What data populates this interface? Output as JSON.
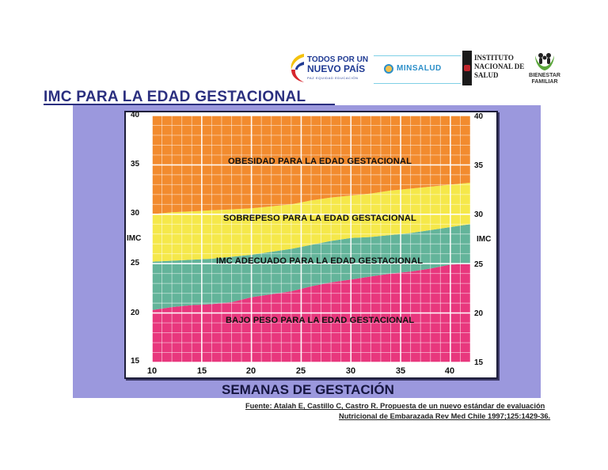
{
  "header": {
    "logos": {
      "todos_line1": "TODOS POR UN",
      "todos_line2": "NUEVO PAÍS",
      "todos_line3": "PAZ  EQUIDAD  EDUCACIÓN",
      "minsalud": "MINSALUD",
      "ins_line1": "INSTITUTO",
      "ins_line2": "NACIONAL DE",
      "ins_line3": "SALUD",
      "bienestar_line1": "BIENESTAR",
      "bienestar_line2": "FAMILIAR"
    },
    "title": "IMC PARA LA EDAD GESTACIONAL"
  },
  "colors": {
    "panel": "#9b98dd",
    "obesidad": "#f28b2e",
    "sobrepeso": "#f5e84a",
    "adecuado": "#63b49a",
    "bajo_peso": "#e8377d",
    "title": "#2b2f7f"
  },
  "chart_data": {
    "type": "area",
    "title": "IMC PARA LA EDAD GESTACIONAL",
    "xlabel": "SEMANAS DE GESTACIÓN",
    "ylabel": "IMC",
    "xlim": [
      10,
      42
    ],
    "ylim": [
      15,
      40
    ],
    "x_ticks": [
      10,
      15,
      20,
      25,
      30,
      35,
      40
    ],
    "y_ticks": [
      15,
      20,
      25,
      30,
      35,
      40
    ],
    "grid": true,
    "x": [
      10,
      12,
      14,
      16,
      18,
      20,
      22,
      24,
      26,
      28,
      30,
      32,
      34,
      36,
      38,
      40,
      42
    ],
    "boundaries": [
      {
        "name": "Bajo peso / Adecuado",
        "values": [
          20.3,
          20.6,
          20.8,
          20.9,
          21.1,
          21.6,
          21.9,
          22.2,
          22.7,
          23.1,
          23.4,
          23.7,
          24.0,
          24.2,
          24.5,
          24.9,
          25.0
        ]
      },
      {
        "name": "Adecuado / Sobrepeso",
        "values": [
          25.2,
          25.3,
          25.4,
          25.5,
          25.7,
          25.9,
          26.2,
          26.5,
          26.9,
          27.3,
          27.6,
          27.7,
          27.9,
          28.1,
          28.4,
          28.7,
          29.0
        ]
      },
      {
        "name": "Sobrepeso / Obesidad",
        "values": [
          30.0,
          30.2,
          30.3,
          30.4,
          30.5,
          30.6,
          30.8,
          31.0,
          31.4,
          31.7,
          31.9,
          32.1,
          32.4,
          32.6,
          32.8,
          33.0,
          33.2
        ]
      }
    ],
    "series": [
      {
        "name": "BAJO PESO PARA LA EDAD GESTACIONAL",
        "color": "#e8377d",
        "range": "15 – lower boundary"
      },
      {
        "name": "IMC ADECUADO PARA LA EDAD GESTACIONAL",
        "color": "#63b49a",
        "range": "lower – middle boundary"
      },
      {
        "name": "SOBREPESO PARA LA EDAD GESTACIONAL",
        "color": "#f5e84a",
        "range": "middle – upper boundary"
      },
      {
        "name": "OBESIDAD PARA LA EDAD GESTACIONAL",
        "color": "#f28b2e",
        "range": "upper boundary – 40"
      }
    ],
    "annotations": [
      "OBESIDAD PARA LA EDAD GESTACIONAL",
      "SOBREPESO PARA LA EDAD GESTACIONAL",
      "IMC ADECUADO PARA LA EDAD GESTACIONAL",
      "BAJO PESO PARA LA EDAD GESTACIONAL"
    ]
  },
  "axis": {
    "y_left": [
      "40",
      "35",
      "30",
      "25",
      "20",
      "15"
    ],
    "y_right": [
      "40",
      "35",
      "30",
      "25",
      "20",
      "15"
    ],
    "x": [
      "10",
      "15",
      "20",
      "25",
      "30",
      "35",
      "40"
    ],
    "ylabel_left": "IMC",
    "ylabel_right": "IMC",
    "xlabel": "SEMANAS DE GESTACIÓN"
  },
  "bands": {
    "obesidad": "OBESIDAD PARA LA EDAD GESTACIONAL",
    "sobrepeso": "SOBREPESO PARA LA EDAD GESTACIONAL",
    "adecuado": "IMC ADECUADO PARA LA EDAD GESTACIONAL",
    "bajo_peso": "BAJO PESO PARA LA EDAD GESTACIONAL"
  },
  "source": {
    "line1": "Fuente: Atalah E, Castillo C, Castro R. Propuesta de un nuevo estándar de evaluación",
    "line2": "Nutricional de Embarazada Rev Med Chile 1997;125:1429-36."
  }
}
